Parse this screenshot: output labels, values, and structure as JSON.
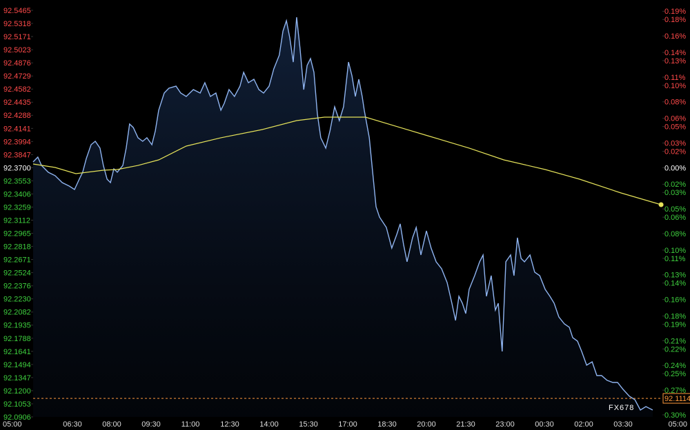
{
  "chart_data": {
    "type": "line",
    "xlim": [
      0,
      24
    ],
    "xticks": [
      {
        "value": 0,
        "label": "05:00"
      },
      {
        "value": 1.5,
        "label": "06:30"
      },
      {
        "value": 3,
        "label": "08:00"
      },
      {
        "value": 4.5,
        "label": "09:30"
      },
      {
        "value": 6,
        "label": "11:00"
      },
      {
        "value": 7.5,
        "label": "12:30"
      },
      {
        "value": 9,
        "label": "14:00"
      },
      {
        "value": 10.5,
        "label": "15:30"
      },
      {
        "value": 12,
        "label": "17:00"
      },
      {
        "value": 13.5,
        "label": "18:30"
      },
      {
        "value": 15,
        "label": "20:00"
      },
      {
        "value": 16.5,
        "label": "21:30"
      },
      {
        "value": 18,
        "label": "23:00"
      },
      {
        "value": 19.5,
        "label": "00:30"
      },
      {
        "value": 21,
        "label": "02:00"
      },
      {
        "value": 22.5,
        "label": "03:30"
      },
      {
        "value": 24,
        "label": "05:00"
      }
    ],
    "ylim": [
      92.0906,
      92.5465
    ],
    "yticks": [
      92.5465,
      92.5318,
      92.5171,
      92.5023,
      92.4876,
      92.4729,
      92.4582,
      92.4435,
      92.4288,
      92.4141,
      92.3994,
      92.3847,
      {
        "value": 92.37,
        "label": "92.3700"
      },
      92.3553,
      92.3406,
      92.3259,
      92.3112,
      92.2965,
      92.2818,
      92.2671,
      92.2524,
      92.2376,
      {
        "value": 92.223,
        "label": "92.2230"
      },
      92.2082,
      92.1935,
      92.1788,
      92.1641,
      92.1494,
      92.1347,
      {
        "value": 92.12,
        "label": "92.1200"
      },
      92.1053,
      92.0906
    ],
    "y2lim": [
      -0.3025,
      0.1911
    ],
    "y2ticks": [
      {
        "value": 0.19,
        "label": "0.19%"
      },
      {
        "value": 0.18,
        "label": "0.18%"
      },
      {
        "value": 0.16,
        "label": "0.16%"
      },
      {
        "value": 0.14,
        "label": "0.14%"
      },
      {
        "value": 0.13,
        "label": "0.13%"
      },
      {
        "value": 0.11,
        "label": "0.11%"
      },
      {
        "value": 0.1,
        "label": "0.10%"
      },
      {
        "value": 0.08,
        "label": "0.08%"
      },
      {
        "value": 0.06,
        "label": "0.06%"
      },
      {
        "value": 0.05,
        "label": "0.05%"
      },
      {
        "value": 0.03,
        "label": "0.03%"
      },
      {
        "value": 0.02,
        "label": "0.02%"
      },
      {
        "value": 0,
        "label": "0.00%"
      },
      {
        "value": -0.02,
        "label": "0.02%"
      },
      {
        "value": -0.03,
        "label": "0.03%"
      },
      {
        "value": -0.05,
        "label": "0.05%"
      },
      {
        "value": -0.06,
        "label": "0.06%"
      },
      {
        "value": -0.08,
        "label": "0.08%"
      },
      {
        "value": -0.1,
        "label": "0.10%"
      },
      {
        "value": -0.11,
        "label": "0.11%"
      },
      {
        "value": -0.13,
        "label": "0.13%"
      },
      {
        "value": -0.14,
        "label": "0.14%"
      },
      {
        "value": -0.16,
        "label": "0.16%"
      },
      {
        "value": -0.18,
        "label": "0.18%"
      },
      {
        "value": -0.19,
        "label": "0.19%"
      },
      {
        "value": -0.21,
        "label": "0.21%"
      },
      {
        "value": -0.22,
        "label": "0.22%"
      },
      {
        "value": -0.24,
        "label": "0.24%"
      },
      {
        "value": -0.25,
        "label": "0.25%"
      },
      {
        "value": -0.27,
        "label": "0.27%"
      },
      {
        "value": -0.3,
        "label": "0.30%"
      }
    ],
    "up_color": "#ff4a4a",
    "down_color": "#3ecf3e",
    "flat_color": "#ffffff",
    "grid": true,
    "series": [
      {
        "color": "#8fb4f0",
        "x": [
          0,
          0.18,
          0.32,
          0.58,
          0.84,
          1.11,
          1.37,
          1.58,
          1.76,
          1.89,
          2.03,
          2.21,
          2.37,
          2.55,
          2.68,
          2.82,
          2.95,
          3.08,
          3.21,
          3.42,
          3.55,
          3.68,
          3.82,
          4,
          4.18,
          4.34,
          4.53,
          4.66,
          4.79,
          5,
          5.18,
          5.45,
          5.63,
          5.84,
          6.11,
          6.37,
          6.55,
          6.76,
          6.97,
          7.16,
          7.29,
          7.47,
          7.68,
          7.89,
          8.03,
          8.21,
          8.42,
          8.61,
          8.79,
          9,
          9.18,
          9.39,
          9.53,
          9.66,
          9.79,
          9.92,
          10.05,
          10.18,
          10.32,
          10.45,
          10.58,
          10.71,
          10.84,
          10.97,
          11.16,
          11.32,
          11.5,
          11.68,
          11.84,
          12.03,
          12.16,
          12.29,
          12.42,
          12.55,
          12.63,
          12.82,
          12.95,
          13.08,
          13.21,
          13.47,
          13.68,
          13.87,
          14,
          14.13,
          14.26,
          14.47,
          14.61,
          14.79,
          15,
          15.18,
          15.37,
          15.58,
          15.79,
          15.97,
          16.11,
          16.24,
          16.37,
          16.5,
          16.63,
          16.84,
          17.03,
          17.16,
          17.29,
          17.47,
          17.63,
          17.74,
          17.89,
          18.03,
          18.21,
          18.34,
          18.47,
          18.61,
          18.74,
          18.95,
          19.13,
          19.32,
          19.53,
          19.71,
          19.87,
          20.05,
          20.26,
          20.45,
          20.58,
          20.76,
          20.92,
          21.11,
          21.32,
          21.5,
          21.68,
          21.89,
          22.11,
          22.29,
          22.5,
          22.74,
          22.95,
          23.16,
          23.37,
          23.63
        ],
        "values": [
          92.3765,
          92.3819,
          92.3726,
          92.3649,
          92.3611,
          92.3533,
          92.3495,
          92.3456,
          92.3572,
          92.3649,
          92.3804,
          92.3958,
          92.3997,
          92.392,
          92.3726,
          92.3572,
          92.3533,
          92.3688,
          92.3649,
          92.3726,
          92.392,
          92.419,
          92.4151,
          92.4036,
          92.3997,
          92.4036,
          92.3958,
          92.4113,
          92.4345,
          92.4538,
          92.4592,
          92.4615,
          92.4538,
          92.4499,
          92.4576,
          92.4538,
          92.4654,
          92.4499,
          92.4538,
          92.4345,
          92.4422,
          92.4576,
          92.4499,
          92.4615,
          92.477,
          92.4654,
          92.4692,
          92.4576,
          92.4538,
          92.4615,
          92.4808,
          92.4963,
          92.5233,
          92.5349,
          92.5156,
          92.4885,
          92.5388,
          92.504,
          92.4576,
          92.4847,
          92.4924,
          92.477,
          92.4306,
          92.4036,
          92.392,
          92.4113,
          92.4383,
          92.4229,
          92.4383,
          92.4885,
          92.4731,
          92.4499,
          92.4692,
          92.4499,
          92.4345,
          92.4036,
          92.3649,
          92.3263,
          92.3147,
          92.3031,
          92.2799,
          92.2954,
          92.307,
          92.2838,
          92.2645,
          92.2915,
          92.3031,
          92.2722,
          92.2992,
          92.2799,
          92.2645,
          92.2567,
          92.2413,
          92.2181,
          92.1988,
          92.2258,
          92.2181,
          92.2065,
          92.2336,
          92.249,
          92.2645,
          92.2722,
          92.2258,
          92.249,
          92.2104,
          92.2181,
          92.164,
          92.2645,
          92.2722,
          92.249,
          92.2915,
          92.2683,
          92.2645,
          92.2722,
          92.2529,
          92.249,
          92.2336,
          92.2258,
          92.2181,
          92.2027,
          92.1949,
          92.1911,
          92.1795,
          92.1756,
          92.164,
          92.1486,
          92.1524,
          92.137,
          92.137,
          92.1316,
          92.1292,
          92.1292,
          92.1215,
          92.1138,
          92.1099,
          92.0983,
          92.1022,
          92.0983
        ]
      },
      {
        "color": "#e6e35a",
        "x": [
          0,
          0.84,
          1.63,
          2.68,
          3.21,
          4,
          4.79,
          5.84,
          7.16,
          8.74,
          10.05,
          11.11,
          12.16,
          12.68,
          14,
          15.05,
          16.63,
          17.95,
          19.53,
          20.84,
          22.42,
          23.95
        ],
        "values": [
          92.3742,
          92.3703,
          92.3634,
          92.3672,
          92.368,
          92.3726,
          92.3788,
          92.3943,
          92.4036,
          92.4128,
          92.4229,
          92.4267,
          92.4267,
          92.4267,
          92.4151,
          92.4059,
          92.392,
          92.3788,
          92.368,
          92.3572,
          92.3417,
          92.3286
        ]
      }
    ],
    "current_price": {
      "value": 92.1114,
      "label": "92.1114",
      "color": "#ff9a3c"
    },
    "watermark": "FX678"
  }
}
